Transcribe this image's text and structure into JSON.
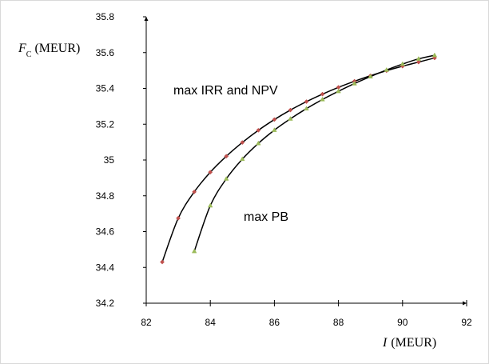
{
  "chart_data": {
    "type": "line",
    "title": "",
    "y_axis_label": {
      "symbol": "F",
      "subscript": "C",
      "unit": "(MEUR)"
    },
    "x_axis_label": {
      "symbol": "I",
      "unit": "(MEUR)"
    },
    "xlim": [
      82,
      92
    ],
    "ylim": [
      34.2,
      35.8
    ],
    "x_ticks": [
      "82",
      "84",
      "86",
      "88",
      "90",
      "92"
    ],
    "y_ticks": [
      "34.2",
      "34.4",
      "34.6",
      "34.8",
      "35",
      "35.2",
      "35.4",
      "35.6",
      "35.8"
    ],
    "grid": false,
    "legend": "none",
    "annotations": [
      {
        "text": "max IRR and NPV"
      },
      {
        "text": "max PB"
      }
    ],
    "series": [
      {
        "marker": "diamond",
        "color": "#000000",
        "marker_color": "#c0504d",
        "x": [
          82.5,
          83.0,
          83.5,
          84.0,
          84.5,
          85.0,
          85.5,
          86.0,
          86.5,
          87.0,
          87.5,
          88.0,
          88.5,
          89.0,
          89.5,
          90.0,
          90.5,
          91.0
        ],
        "y": [
          34.43,
          34.675,
          34.822,
          34.932,
          35.021,
          35.098,
          35.166,
          35.226,
          35.279,
          35.326,
          35.368,
          35.406,
          35.44,
          35.471,
          35.499,
          35.524,
          35.547,
          35.57
        ]
      },
      {
        "marker": "triangle",
        "color": "#000000",
        "marker_color": "#9bbb59",
        "x": [
          83.5,
          84.0,
          84.5,
          85.0,
          85.5,
          86.0,
          86.5,
          87.0,
          87.5,
          88.0,
          88.5,
          89.0,
          89.5,
          90.0,
          90.5,
          91.0
        ],
        "y": [
          34.49,
          34.745,
          34.895,
          35.005,
          35.093,
          35.167,
          35.23,
          35.287,
          35.338,
          35.384,
          35.427,
          35.466,
          35.503,
          35.536,
          35.565,
          35.585
        ]
      }
    ]
  }
}
